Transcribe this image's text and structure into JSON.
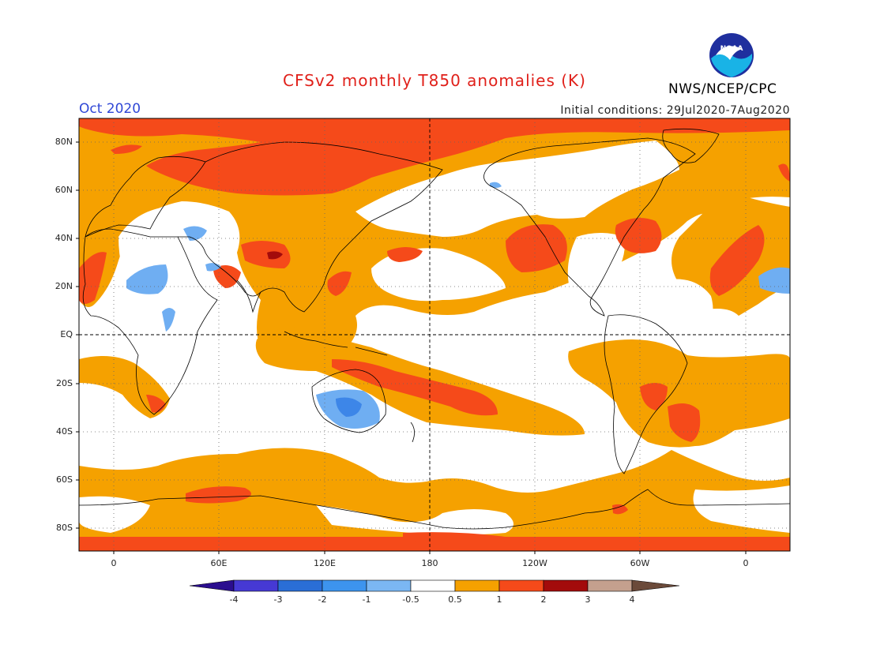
{
  "header": {
    "title": "CFSv2 monthly T850 anomalies (K)",
    "month": "Oct 2020",
    "initial_conditions": "Initial conditions: 29Jul2020-7Aug2020",
    "agency": "NWS/NCEP/CPC",
    "logo_text": "NOAA"
  },
  "map": {
    "lat_labels": [
      "80N",
      "60N",
      "40N",
      "20N",
      "EQ",
      "20S",
      "40S",
      "60S",
      "80S"
    ],
    "lon_labels": [
      "0",
      "60E",
      "120E",
      "180",
      "120W",
      "60W",
      "0"
    ],
    "colors": {
      "white_band": "#ffffff",
      "orange": "#f5a100",
      "red_orange": "#f54a1a",
      "dark_red": "#a30b0b",
      "light_blue": "#6faef2",
      "blue": "#3d86e8",
      "coast": "#000000"
    }
  },
  "colorbar": {
    "labels": [
      "-4",
      "-3",
      "-2",
      "-1",
      "-0.5",
      "0.5",
      "1",
      "2",
      "3",
      "4"
    ],
    "colors": [
      "#2b0e8f",
      "#4639d4",
      "#2a6ed6",
      "#3d94ee",
      "#7bb7f3",
      "#ffffff",
      "#f5a100",
      "#f54a1a",
      "#a30b0b",
      "#c4a08e",
      "#6b4a3a"
    ]
  }
}
